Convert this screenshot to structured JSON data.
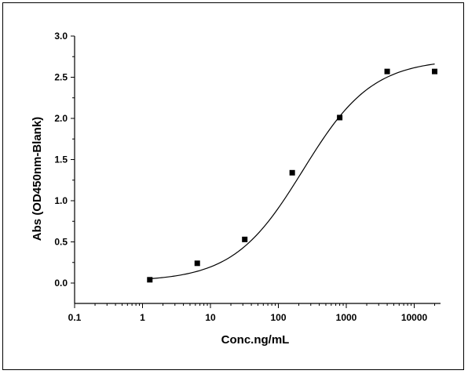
{
  "chart_data": {
    "type": "scatter",
    "title": "",
    "xlabel": "Conc.ng/mL",
    "ylabel": "Abs (OD450nm-Blank)",
    "x_scale": "log",
    "xlim": [
      0.1,
      20000
    ],
    "ylim": [
      0,
      3.0
    ],
    "x_ticks": [
      0.1,
      1,
      10,
      100,
      1000,
      10000
    ],
    "x_tick_labels": [
      "0.1",
      "1",
      "10",
      "100",
      "1000",
      "10000"
    ],
    "y_ticks": [
      0.0,
      0.5,
      1.0,
      1.5,
      2.0,
      2.5,
      3.0
    ],
    "y_tick_labels": [
      "0.0",
      "0.5",
      "1.0",
      "1.5",
      "2.0",
      "2.5",
      "3.0"
    ],
    "grid": false,
    "legend": "none",
    "series": [
      {
        "marker": "square",
        "x": [
          1.28,
          6.4,
          32,
          160,
          800,
          4000,
          20000
        ],
        "y": [
          0.04,
          0.24,
          0.53,
          1.34,
          2.01,
          2.57,
          2.57
        ]
      }
    ],
    "fit_curve": {
      "type": "4PL",
      "bottom": 0.02,
      "top": 2.72,
      "ec50": 230,
      "hill": 0.85
    },
    "colors": {
      "axis": "#000000",
      "marker": "#000000",
      "curve": "#000000"
    }
  }
}
